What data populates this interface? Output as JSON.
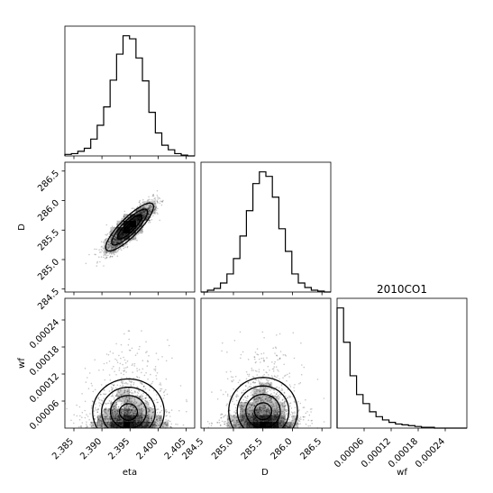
{
  "chart_data": {
    "type": "corner",
    "title": "2010CO1",
    "parameters": [
      "eta",
      "D",
      "wf"
    ],
    "axis_labels": {
      "eta": "eta",
      "D": "D",
      "wf": "wf"
    },
    "ranges": {
      "eta": [
        2.3834,
        2.4065
      ],
      "D": [
        284.45,
        286.65
      ],
      "wf": [
        0.0,
        0.000288
      ]
    },
    "ticks": {
      "eta": [
        "2.385",
        "2.390",
        "2.395",
        "2.400",
        "2.405"
      ],
      "D": [
        "284.5",
        "285.0",
        "285.5",
        "286.0",
        "286.5"
      ],
      "wf": [
        "0.00006",
        "0.00012",
        "0.00018",
        "0.00024"
      ]
    },
    "tick_values": {
      "eta": [
        2.385,
        2.39,
        2.395,
        2.4,
        2.405
      ],
      "D": [
        284.5,
        285.0,
        285.5,
        286.0,
        286.5
      ],
      "wf": [
        6e-05,
        0.00012,
        0.00018,
        0.00024
      ]
    },
    "histograms": {
      "eta": {
        "bin_edges": [
          2.3834,
          2.38455,
          2.3857,
          2.38685,
          2.388,
          2.38915,
          2.3903,
          2.39145,
          2.3926,
          2.39375,
          2.3949,
          2.39605,
          2.3972,
          2.39835,
          2.3995,
          2.40065,
          2.4018,
          2.40295,
          2.4041,
          2.40525,
          2.4065
        ],
        "counts": [
          2,
          3,
          6,
          10,
          22,
          40,
          64,
          99,
          133,
          157,
          153,
          128,
          98,
          57,
          30,
          14,
          8,
          3,
          1,
          0
        ]
      },
      "D": {
        "bin_edges": [
          284.45,
          284.56,
          284.67,
          284.78,
          284.89,
          285.0,
          285.11,
          285.22,
          285.33,
          285.44,
          285.55,
          285.66,
          285.77,
          285.88,
          285.99,
          286.1,
          286.21,
          286.32,
          286.43,
          286.54,
          286.65
        ],
        "counts": [
          0,
          2,
          4,
          10,
          20,
          37,
          62,
          90,
          120,
          133,
          128,
          105,
          70,
          45,
          20,
          10,
          5,
          2,
          1,
          0
        ]
      },
      "wf": {
        "bin_edges": [
          0.0,
          1.44e-05,
          2.88e-05,
          4.32e-05,
          5.76e-05,
          7.2e-05,
          8.64e-05,
          0.0001008,
          0.0001152,
          0.0001296,
          0.000144,
          0.0001584,
          0.0001728,
          0.0001872,
          0.0002016,
          0.000216,
          0.0002304,
          0.0002448,
          0.0002592,
          0.0002736,
          0.000288
        ],
        "counts": [
          147,
          105,
          64,
          41,
          30,
          20,
          14,
          10,
          7,
          5,
          4,
          3,
          2,
          1,
          1,
          0,
          0,
          0,
          0,
          0
        ]
      }
    },
    "pairs": [
      {
        "x": "eta",
        "y": "D",
        "correlation": 0.85
      },
      {
        "x": "eta",
        "y": "wf",
        "correlation": 0.0
      },
      {
        "x": "D",
        "y": "wf",
        "correlation": 0.0
      }
    ],
    "grid": false,
    "legend": "none"
  }
}
